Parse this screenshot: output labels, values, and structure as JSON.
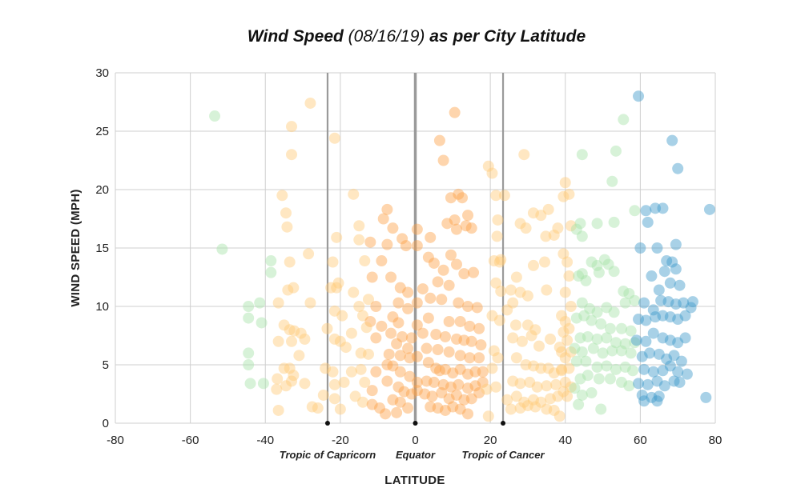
{
  "chart_data": {
    "type": "scatter",
    "title": {
      "bold": "Wind Speed",
      "date": "(08/16/19)",
      "rest": "as per City Latitude"
    },
    "xlabel": "LATITUDE",
    "ylabel": "WIND SPEED (MPH)",
    "xlim": [
      -80,
      80
    ],
    "ylim": [
      0,
      30
    ],
    "xticks": [
      "-80",
      "-60",
      "-40",
      "-20",
      "0",
      "20",
      "40",
      "60",
      "80"
    ],
    "yticks": [
      "0",
      "5",
      "10",
      "15",
      "20",
      "25",
      "30"
    ],
    "grid": true,
    "reference_lines": [
      {
        "label": "Tropic of Capricorn",
        "x": -23.4
      },
      {
        "label": "Equator",
        "x": 0
      },
      {
        "label": "Tropic of Cancer",
        "x": 23.4
      }
    ],
    "colors": {
      "south_far": "#a6e3a8",
      "tropics": "#ffc978",
      "equator": "#fca24a",
      "north_mid": "#a6e3a8",
      "north_far": "#3d98c9",
      "gridline": "#cfcfcf",
      "refline": "#9a9a9a"
    },
    "points": [
      [
        -53.5,
        26.3
      ],
      [
        -51.5,
        14.9
      ],
      [
        -44.5,
        10
      ],
      [
        -44.5,
        9
      ],
      [
        -44.5,
        6
      ],
      [
        -44.5,
        5
      ],
      [
        -44,
        3.4
      ],
      [
        -41.5,
        10.3
      ],
      [
        -41,
        8.6
      ],
      [
        -40.5,
        3.4
      ],
      [
        -38.5,
        13.9
      ],
      [
        -38.5,
        12.9
      ],
      [
        -28,
        27.4
      ],
      [
        -33,
        25.4
      ],
      [
        -33,
        23
      ],
      [
        -35.5,
        19.5
      ],
      [
        -34.5,
        18
      ],
      [
        -34.2,
        16.8
      ],
      [
        -33.5,
        13.8
      ],
      [
        -32.5,
        11.6
      ],
      [
        -34,
        11.4
      ],
      [
        -36.5,
        10.3
      ],
      [
        -35,
        8.4
      ],
      [
        -33.5,
        8
      ],
      [
        -32.3,
        7.9
      ],
      [
        -30.5,
        7.7
      ],
      [
        -36.5,
        7
      ],
      [
        -33,
        7
      ],
      [
        -31,
        5.8
      ],
      [
        -35,
        4.7
      ],
      [
        -33.5,
        4.7
      ],
      [
        -32.5,
        4.1
      ],
      [
        -36.8,
        3.8
      ],
      [
        -33,
        3.6
      ],
      [
        -29.5,
        3.4
      ],
      [
        -37,
        2.9
      ],
      [
        -34.5,
        3.2
      ],
      [
        -36.5,
        1.1
      ],
      [
        -27.5,
        1.4
      ],
      [
        -26,
        1.3
      ],
      [
        -28,
        10.3
      ],
      [
        -28.5,
        14.5
      ],
      [
        -29.5,
        7.2
      ],
      [
        -21.5,
        24.4
      ],
      [
        -21,
        15.9
      ],
      [
        -22,
        13.8
      ],
      [
        -22.5,
        11.6
      ],
      [
        -21,
        11.6
      ],
      [
        -20.5,
        12
      ],
      [
        -21.5,
        9.6
      ],
      [
        -19.5,
        9.2
      ],
      [
        -23.5,
        8.1
      ],
      [
        -21.5,
        7.2
      ],
      [
        -20,
        7
      ],
      [
        -24,
        4.7
      ],
      [
        -22,
        4.4
      ],
      [
        -21.5,
        3.3
      ],
      [
        -19,
        3.5
      ],
      [
        -24.5,
        2.4
      ],
      [
        -21.5,
        2.1
      ],
      [
        -20,
        1.2
      ],
      [
        -16.5,
        19.6
      ],
      [
        -15,
        16.9
      ],
      [
        -15,
        15.7
      ],
      [
        -12,
        15.5
      ],
      [
        -13.5,
        13.9
      ],
      [
        -9,
        13.9
      ],
      [
        -11.5,
        12.5
      ],
      [
        -16.5,
        11.2
      ],
      [
        -12.5,
        10.6
      ],
      [
        -15,
        10
      ],
      [
        -10.5,
        10
      ],
      [
        -14,
        9.2
      ],
      [
        -12,
        8.7
      ],
      [
        -13,
        8.2
      ],
      [
        -9,
        8.3
      ],
      [
        -17,
        7.7
      ],
      [
        -10.5,
        7.3
      ],
      [
        -18.5,
        6.5
      ],
      [
        -14.5,
        6
      ],
      [
        -12.5,
        5.9
      ],
      [
        -14.5,
        4.6
      ],
      [
        -10.5,
        4.4
      ],
      [
        -17,
        4.4
      ],
      [
        -13.5,
        3.5
      ],
      [
        -11.5,
        2.8
      ],
      [
        -16,
        2.3
      ],
      [
        -14,
        1.8
      ],
      [
        -11.5,
        1.6
      ],
      [
        -9.5,
        1.3
      ],
      [
        -8,
        0.8
      ],
      [
        -7.5,
        18.3
      ],
      [
        -8.5,
        17.5
      ],
      [
        -6,
        16.7
      ],
      [
        -7.5,
        15.3
      ],
      [
        -3.5,
        15.8
      ],
      [
        -2.5,
        15.2
      ],
      [
        -6.5,
        12.5
      ],
      [
        -4,
        11.6
      ],
      [
        -2,
        11.2
      ],
      [
        -4.5,
        10.3
      ],
      [
        -2,
        9.8
      ],
      [
        -6,
        9.1
      ],
      [
        -4.5,
        8.6
      ],
      [
        -6.5,
        7.7
      ],
      [
        -3.5,
        7.4
      ],
      [
        -1,
        7.3
      ],
      [
        -5,
        6.8
      ],
      [
        -2,
        6.4
      ],
      [
        -7,
        5.9
      ],
      [
        -4,
        5.8
      ],
      [
        -1.5,
        5.6
      ],
      [
        -7.5,
        5
      ],
      [
        -6,
        4.9
      ],
      [
        -4,
        4.4
      ],
      [
        -1.5,
        4
      ],
      [
        -7.5,
        3.6
      ],
      [
        -4.5,
        3.1
      ],
      [
        -3,
        2.7
      ],
      [
        -1,
        2.5
      ],
      [
        -6,
        2
      ],
      [
        -4,
        1.8
      ],
      [
        -2,
        1.3
      ],
      [
        -5,
        0.9
      ],
      [
        0.5,
        16.6
      ],
      [
        0.5,
        15.2
      ],
      [
        0.5,
        10.3
      ],
      [
        0.5,
        8.4
      ],
      [
        0.5,
        5.7
      ],
      [
        0.5,
        3.5
      ],
      [
        0.5,
        2.8
      ],
      [
        6.5,
        24.2
      ],
      [
        7.5,
        22.5
      ],
      [
        10.5,
        26.6
      ],
      [
        9.5,
        19.3
      ],
      [
        11.5,
        19.6
      ],
      [
        12.5,
        19.3
      ],
      [
        10.5,
        17.4
      ],
      [
        8.5,
        17.1
      ],
      [
        14,
        17.8
      ],
      [
        11,
        16.6
      ],
      [
        13.5,
        16.9
      ],
      [
        15,
        16.7
      ],
      [
        4,
        15.9
      ],
      [
        3.5,
        14.2
      ],
      [
        9.5,
        14.4
      ],
      [
        7.5,
        13.1
      ],
      [
        5,
        13.7
      ],
      [
        11,
        13.6
      ],
      [
        13,
        12.8
      ],
      [
        15.5,
        12.9
      ],
      [
        6,
        12.1
      ],
      [
        9,
        11.8
      ],
      [
        2,
        11.5
      ],
      [
        4,
        10.7
      ],
      [
        7,
        10.6
      ],
      [
        11.5,
        10.3
      ],
      [
        14,
        10
      ],
      [
        16.5,
        9.9
      ],
      [
        3.5,
        9
      ],
      [
        9,
        8.7
      ],
      [
        12,
        8.7
      ],
      [
        14.5,
        8.3
      ],
      [
        17,
        8.1
      ],
      [
        2,
        7.7
      ],
      [
        5.5,
        7.6
      ],
      [
        8,
        7.4
      ],
      [
        11,
        7.2
      ],
      [
        13,
        7.1
      ],
      [
        15,
        7
      ],
      [
        17.5,
        6.7
      ],
      [
        3,
        6.4
      ],
      [
        6,
        6.3
      ],
      [
        9,
        6.1
      ],
      [
        12,
        5.8
      ],
      [
        14.5,
        5.6
      ],
      [
        17,
        5.6
      ],
      [
        3.5,
        5.2
      ],
      [
        5.5,
        4.7
      ],
      [
        6.5,
        4.5
      ],
      [
        8,
        4.6
      ],
      [
        10,
        4.3
      ],
      [
        12,
        4.6
      ],
      [
        14,
        4.2
      ],
      [
        16,
        4.4
      ],
      [
        18,
        4.4
      ],
      [
        3,
        3.6
      ],
      [
        5,
        3.5
      ],
      [
        7.5,
        3.3
      ],
      [
        9.5,
        3.1
      ],
      [
        11.5,
        3.3
      ],
      [
        14,
        3
      ],
      [
        16,
        3.2
      ],
      [
        18,
        3.5
      ],
      [
        2.5,
        2.5
      ],
      [
        4.5,
        2.3
      ],
      [
        7,
        2.6
      ],
      [
        9,
        2.1
      ],
      [
        11,
        2.4
      ],
      [
        13,
        2
      ],
      [
        15,
        2.1
      ],
      [
        17,
        2.6
      ],
      [
        4,
        1.4
      ],
      [
        6,
        1.3
      ],
      [
        8,
        1.1
      ],
      [
        10,
        1.4
      ],
      [
        12,
        1.2
      ],
      [
        14,
        0.8
      ],
      [
        19.5,
        22
      ],
      [
        20.5,
        21.4
      ],
      [
        21.5,
        19.5
      ],
      [
        22,
        17.4
      ],
      [
        21.8,
        16
      ],
      [
        22.8,
        14
      ],
      [
        21,
        13.9
      ],
      [
        22.5,
        13.8
      ],
      [
        21.5,
        12
      ],
      [
        22.8,
        11.3
      ],
      [
        20.5,
        9.2
      ],
      [
        22.5,
        8.8
      ],
      [
        21,
        6.2
      ],
      [
        22,
        5.6
      ],
      [
        20.5,
        4.7
      ],
      [
        19,
        2.9
      ],
      [
        21.5,
        3.1
      ],
      [
        19.5,
        0.6
      ],
      [
        23.8,
        19.5
      ],
      [
        29,
        23
      ],
      [
        28,
        17.1
      ],
      [
        29.5,
        16.7
      ],
      [
        31.5,
        18
      ],
      [
        35.5,
        18.3
      ],
      [
        33.5,
        17.8
      ],
      [
        34.8,
        16
      ],
      [
        38,
        16.7
      ],
      [
        37,
        16.1
      ],
      [
        34.5,
        13.8
      ],
      [
        31.5,
        13.5
      ],
      [
        27,
        12.5
      ],
      [
        25.5,
        11.4
      ],
      [
        28,
        11.2
      ],
      [
        35,
        11.4
      ],
      [
        30,
        10.9
      ],
      [
        26,
        10.3
      ],
      [
        24.5,
        9.7
      ],
      [
        26.8,
        8.4
      ],
      [
        30,
        8.4
      ],
      [
        32,
        8
      ],
      [
        26,
        7.3
      ],
      [
        28.5,
        7
      ],
      [
        31,
        7.5
      ],
      [
        33,
        6.6
      ],
      [
        36,
        7.2
      ],
      [
        38.5,
        6.5
      ],
      [
        27,
        5.6
      ],
      [
        29.5,
        5
      ],
      [
        31.5,
        4.9
      ],
      [
        33.5,
        4.7
      ],
      [
        35.5,
        4.7
      ],
      [
        37,
        4.3
      ],
      [
        39,
        4.6
      ],
      [
        26,
        3.6
      ],
      [
        28,
        3.4
      ],
      [
        30.5,
        3.5
      ],
      [
        32.5,
        3.1
      ],
      [
        35,
        3.2
      ],
      [
        37.5,
        3.3
      ],
      [
        24.5,
        2
      ],
      [
        27,
        2.3
      ],
      [
        29,
        1.8
      ],
      [
        31.5,
        2
      ],
      [
        33.5,
        1.8
      ],
      [
        36,
        2.1
      ],
      [
        38,
        2.3
      ],
      [
        25.5,
        1.2
      ],
      [
        28,
        1.3
      ],
      [
        30,
        1.5
      ],
      [
        32,
        1.4
      ],
      [
        35,
        1.2
      ],
      [
        37,
        1.1
      ],
      [
        38.5,
        0.6
      ],
      [
        40,
        20.6
      ],
      [
        41,
        19.6
      ],
      [
        39.5,
        19.4
      ],
      [
        41.5,
        16.9
      ],
      [
        39.5,
        14.5
      ],
      [
        40.5,
        13.8
      ],
      [
        41,
        12.6
      ],
      [
        40,
        11.2
      ],
      [
        41.5,
        10
      ],
      [
        39,
        9.2
      ],
      [
        40,
        8.7
      ],
      [
        41,
        8.1
      ],
      [
        39.5,
        7.8
      ],
      [
        40.5,
        7.1
      ],
      [
        39,
        6.1
      ],
      [
        41.5,
        6.1
      ],
      [
        40,
        5.6
      ],
      [
        39,
        4.5
      ],
      [
        41,
        4.7
      ],
      [
        40,
        3.5
      ],
      [
        41.5,
        3.1
      ],
      [
        39.5,
        2.7
      ],
      [
        40.5,
        2.3
      ],
      [
        44,
        17.1
      ],
      [
        43,
        16.6
      ],
      [
        44.5,
        16
      ],
      [
        48.5,
        17.1
      ],
      [
        53,
        17.2
      ],
      [
        58.5,
        18.2
      ],
      [
        44.5,
        12.8
      ],
      [
        43.5,
        12.6
      ],
      [
        45.5,
        12.2
      ],
      [
        47,
        13.8
      ],
      [
        48.5,
        13.5
      ],
      [
        50.5,
        14
      ],
      [
        51.5,
        13.6
      ],
      [
        49,
        12.9
      ],
      [
        53,
        13
      ],
      [
        55.5,
        11.3
      ],
      [
        57,
        11.1
      ],
      [
        56,
        10.3
      ],
      [
        44.5,
        10.3
      ],
      [
        46.5,
        9.8
      ],
      [
        48.5,
        9.5
      ],
      [
        51,
        9.9
      ],
      [
        53,
        9.5
      ],
      [
        43,
        9
      ],
      [
        45,
        9.2
      ],
      [
        47,
        8.8
      ],
      [
        49.5,
        8.5
      ],
      [
        52,
        8.1
      ],
      [
        55,
        8.1
      ],
      [
        57.5,
        7.9
      ],
      [
        44,
        7.3
      ],
      [
        46,
        7.4
      ],
      [
        48.5,
        7.2
      ],
      [
        51,
        7.3
      ],
      [
        53.5,
        6.9
      ],
      [
        56,
        6.8
      ],
      [
        58.5,
        6.9
      ],
      [
        42.5,
        6.4
      ],
      [
        44.5,
        6.1
      ],
      [
        47.5,
        6.4
      ],
      [
        50,
        6
      ],
      [
        52.5,
        6.2
      ],
      [
        55,
        6.2
      ],
      [
        57.5,
        6
      ],
      [
        43,
        5.3
      ],
      [
        45.5,
        5.3
      ],
      [
        48.5,
        4.8
      ],
      [
        51,
        4.9
      ],
      [
        53.5,
        4.6
      ],
      [
        56,
        4.8
      ],
      [
        58,
        4.5
      ],
      [
        44,
        3.8
      ],
      [
        46,
        4.1
      ],
      [
        49,
        3.8
      ],
      [
        52,
        3.8
      ],
      [
        55,
        3.5
      ],
      [
        57,
        3.2
      ],
      [
        42.5,
        3
      ],
      [
        44.5,
        2.4
      ],
      [
        47,
        2.6
      ],
      [
        43.5,
        1.6
      ],
      [
        49.5,
        1.2
      ],
      [
        44.5,
        23
      ],
      [
        53.5,
        23.3
      ],
      [
        55.5,
        26
      ],
      [
        52.5,
        20.7
      ],
      [
        59.5,
        28
      ],
      [
        68.5,
        24.2
      ],
      [
        70,
        21.8
      ],
      [
        61.5,
        18.2
      ],
      [
        64,
        18.4
      ],
      [
        66,
        18.4
      ],
      [
        78.5,
        18.3
      ],
      [
        62,
        17.2
      ],
      [
        60,
        15
      ],
      [
        64.5,
        15
      ],
      [
        69.5,
        15.3
      ],
      [
        67,
        13.9
      ],
      [
        68.5,
        13.8
      ],
      [
        66.5,
        13
      ],
      [
        69.5,
        13.2
      ],
      [
        63,
        12.6
      ],
      [
        65,
        11.4
      ],
      [
        68,
        12
      ],
      [
        70.5,
        11.8
      ],
      [
        58.5,
        10.5
      ],
      [
        61,
        10.3
      ],
      [
        63.5,
        9.7
      ],
      [
        65.5,
        10.5
      ],
      [
        67.5,
        10.4
      ],
      [
        69.5,
        10.2
      ],
      [
        71.5,
        10.3
      ],
      [
        74,
        10.4
      ],
      [
        73.5,
        9.9
      ],
      [
        59.5,
        8.9
      ],
      [
        61.5,
        8.8
      ],
      [
        64,
        9.1
      ],
      [
        66,
        9.2
      ],
      [
        68,
        9.1
      ],
      [
        70,
        8.9
      ],
      [
        72,
        9.2
      ],
      [
        59,
        7.1
      ],
      [
        61.5,
        7
      ],
      [
        63.5,
        7.7
      ],
      [
        66,
        7.3
      ],
      [
        68,
        7.1
      ],
      [
        70,
        6.9
      ],
      [
        72,
        7.3
      ],
      [
        60.5,
        5.7
      ],
      [
        62.5,
        6
      ],
      [
        65,
        5.9
      ],
      [
        67,
        5.5
      ],
      [
        69,
        5.8
      ],
      [
        71,
        5.3
      ],
      [
        61,
        4.6
      ],
      [
        63.5,
        4.4
      ],
      [
        66,
        4.5
      ],
      [
        68,
        4.9
      ],
      [
        70,
        4.4
      ],
      [
        72.5,
        4.2
      ],
      [
        59.5,
        3.4
      ],
      [
        62,
        3.3
      ],
      [
        64.5,
        3.6
      ],
      [
        66.5,
        3.2
      ],
      [
        69,
        3.6
      ],
      [
        60.5,
        2.4
      ],
      [
        63,
        2.2
      ],
      [
        65,
        2.3
      ],
      [
        61,
        1.9
      ],
      [
        64.5,
        1.9
      ],
      [
        77.5,
        2.2
      ],
      [
        70.5,
        3.5
      ]
    ]
  }
}
